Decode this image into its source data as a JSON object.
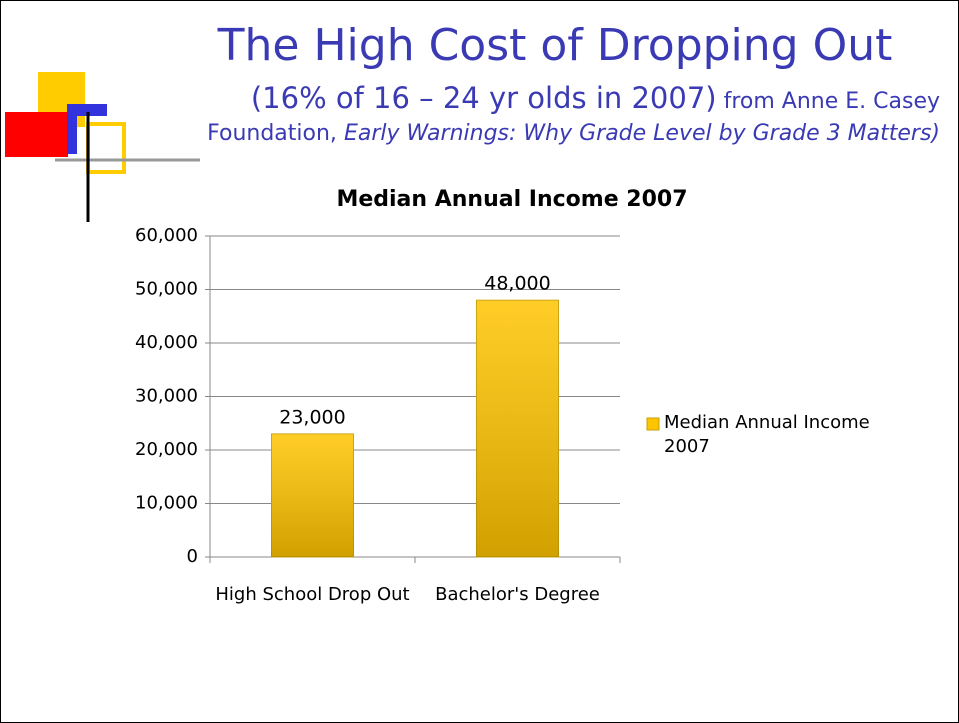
{
  "slide": {
    "title": "The High Cost of Dropping Out",
    "subtitle_main": "(16% of 16 – 24 yr olds in 2007)",
    "subtitle_source": "from Anne E. Casey Foundation,",
    "subtitle_italic": "Early Warnings: Why Grade Level by Grade 3 Matters)"
  },
  "chart_data": {
    "type": "bar",
    "title": "Median Annual Income 2007",
    "categories": [
      "High School Drop Out",
      "Bachelor's Degree"
    ],
    "series": [
      {
        "name": "Median Annual Income 2007",
        "color": "#ffc400",
        "values": [
          23000,
          48000
        ],
        "value_labels": [
          "23,000",
          "48,000"
        ]
      }
    ],
    "ylim": [
      0,
      60000
    ],
    "yticks": [
      0,
      {
        "value": 10000,
        "label": "10,000"
      },
      {
        "value": 20000,
        "label": "20,000"
      },
      {
        "value": 30000,
        "label": "30,000"
      },
      {
        "value": 40000,
        "label": "40,000"
      },
      {
        "value": 50000,
        "label": "50,000"
      },
      {
        "value": 60000,
        "label": "60,000"
      }
    ],
    "grid": true,
    "legend": "right"
  }
}
